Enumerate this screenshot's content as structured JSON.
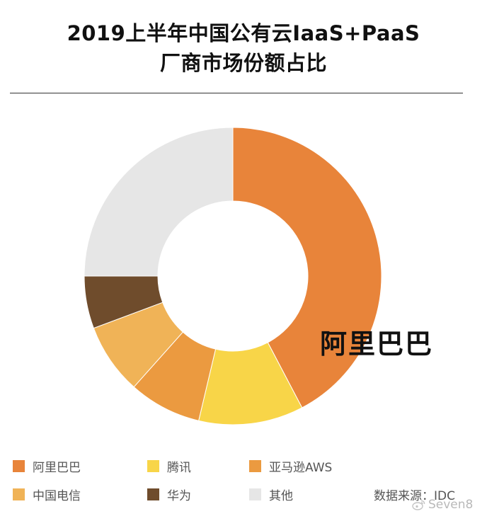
{
  "title": {
    "line1": "2019上半年中国公有云IaaS+PaaS",
    "line2": "厂商市场份额占比"
  },
  "chart_data": {
    "type": "pie",
    "style": "donut",
    "title": "2019上半年中国公有云IaaS+PaaS 厂商市场份额占比",
    "unit": "%",
    "start": "12 o'clock, clockwise",
    "slices": [
      {
        "label": "阿里巴巴",
        "value": 42.3,
        "color": "#E8843A"
      },
      {
        "label": "腾讯",
        "value": 11.4,
        "color": "#F8D548"
      },
      {
        "label": "亚马逊AWS",
        "value": 7.9,
        "color": "#EB9A40"
      },
      {
        "label": "中国电信",
        "value": 7.7,
        "color": "#F0B357"
      },
      {
        "label": "华为",
        "value": 5.7,
        "color": "#6F4C2C"
      },
      {
        "label": "其他",
        "value": 25.0,
        "color": "#E6E6E6"
      }
    ],
    "callout": "阿里巴巴",
    "legend_position": "bottom"
  },
  "legend": {
    "items": [
      {
        "label": "阿里巴巴",
        "color": "#E8843A"
      },
      {
        "label": "腾讯",
        "color": "#F8D548"
      },
      {
        "label": "亚马逊AWS",
        "color": "#EB9A40"
      },
      {
        "label": "中国电信",
        "color": "#F0B357"
      },
      {
        "label": "华为",
        "color": "#6F4C2C"
      },
      {
        "label": "其他",
        "color": "#E6E6E6"
      }
    ]
  },
  "source": "数据来源：IDC",
  "watermark": {
    "text": "Seven8",
    "icon": "weibo-icon"
  }
}
